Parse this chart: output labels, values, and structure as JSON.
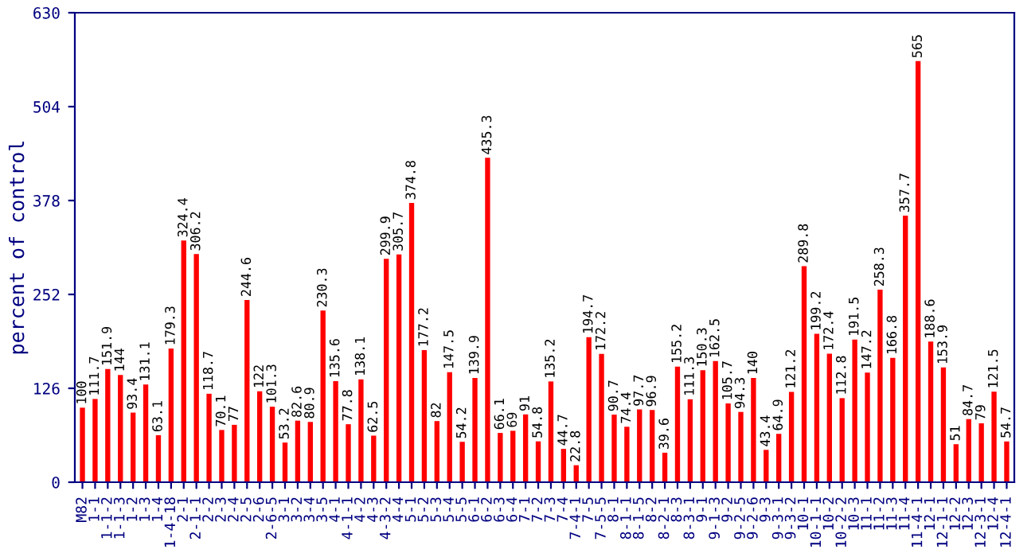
{
  "chart_data": {
    "type": "bar",
    "ylabel": "percent of control",
    "categories": [
      "M82",
      "1-1",
      "1-1-2",
      "1-1-3",
      "1-2",
      "1-3",
      "1-4",
      "1-4-18",
      "2-1",
      "2-1-1",
      "2-2",
      "2-3",
      "2-4",
      "2-5",
      "2-6",
      "2-6-5",
      "3-1",
      "3-2",
      "3-4",
      "3-5",
      "4-1",
      "4-1-1",
      "4-2",
      "4-3",
      "4-3-2",
      "4-4",
      "5-1",
      "5-2",
      "5-3",
      "5-4",
      "5-5",
      "6-1",
      "6-2",
      "6-3",
      "6-4",
      "7-1",
      "7-2",
      "7-3",
      "7-4",
      "7-4-1",
      "7-5",
      "7-5-5",
      "8-1",
      "8-1-1",
      "8-1-5",
      "8-2",
      "8-2-1",
      "8-3",
      "8-3-1",
      "9-1",
      "9-1-3",
      "9-2",
      "9-2-5",
      "9-2-6",
      "9-3",
      "9-3-1",
      "9-3-2",
      "10-1",
      "10-1-1",
      "10-2",
      "10-2-2",
      "10-3",
      "11-1",
      "11-2",
      "11-3",
      "11-4",
      "11-4-1",
      "12-1",
      "12-1-1",
      "12-2",
      "12-3",
      "12-3-1",
      "12-4",
      "12-4-1"
    ],
    "values": [
      100,
      111.7,
      151.9,
      144,
      93.4,
      131.1,
      63.1,
      179.3,
      324.4,
      306.2,
      118.7,
      70.1,
      77,
      244.6,
      122,
      101.3,
      53.2,
      82.6,
      80.9,
      230.3,
      135.6,
      77.8,
      138.1,
      62.5,
      299.9,
      305.7,
      374.8,
      177.2,
      82,
      147.5,
      54.2,
      139.9,
      435.3,
      66.1,
      69,
      91,
      54.8,
      135.2,
      44.7,
      22.8,
      194.7,
      172.2,
      90.7,
      74.4,
      97.7,
      96.9,
      39.6,
      155.2,
      111.3,
      150.3,
      162.5,
      105.7,
      94.3,
      140,
      43.4,
      64.9,
      121.2,
      289.8,
      199.2,
      172.4,
      112.8,
      191.5,
      147.2,
      258.3,
      166.8,
      357.7,
      565,
      188.6,
      153.9,
      51,
      84.7,
      79,
      121.5,
      54.7
    ],
    "color": "#ff0000",
    "ylim": [
      0,
      630
    ],
    "yticks": [
      0,
      126,
      252,
      378,
      504,
      630
    ],
    "data_labels": true,
    "grid": false,
    "legend": false
  }
}
